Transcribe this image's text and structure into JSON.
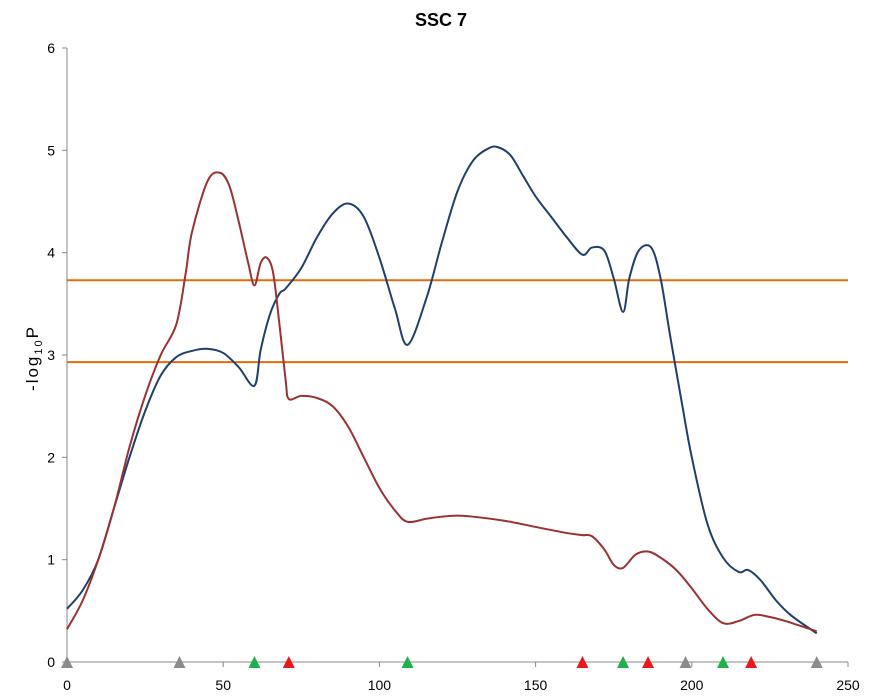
{
  "chart_data": {
    "type": "line",
    "title": "SSC 7",
    "ylabel": "-log10P",
    "ylabel_parts": {
      "prefix": "-log",
      "subscript": "10",
      "suffix": "P"
    },
    "xlabel": "",
    "xlim": [
      0,
      250
    ],
    "ylim": [
      0,
      6
    ],
    "xticks": [
      0,
      50,
      100,
      150,
      200,
      250
    ],
    "yticks": [
      0,
      1,
      2,
      3,
      4,
      5,
      6
    ],
    "grid": false,
    "legend": "none",
    "series": [
      {
        "color": "#1F3F6F",
        "x": [
          0,
          5,
          10,
          15,
          20,
          25,
          30,
          35,
          40,
          45,
          50,
          55,
          60,
          62,
          65,
          68,
          70,
          75,
          80,
          85,
          90,
          95,
          100,
          105,
          109,
          115,
          120,
          125,
          130,
          135,
          138,
          142,
          146,
          150,
          155,
          160,
          165,
          168,
          172,
          175,
          178,
          180,
          183,
          187,
          190,
          193,
          197,
          200,
          205,
          210,
          215,
          218,
          222,
          227,
          232,
          240
        ],
        "y": [
          0.52,
          0.7,
          1.0,
          1.5,
          2.0,
          2.45,
          2.8,
          2.98,
          3.04,
          3.06,
          3.02,
          2.88,
          2.7,
          3.05,
          3.4,
          3.6,
          3.65,
          3.85,
          4.15,
          4.38,
          4.48,
          4.35,
          3.95,
          3.45,
          3.1,
          3.55,
          4.1,
          4.6,
          4.9,
          5.02,
          5.03,
          4.95,
          4.75,
          4.55,
          4.35,
          4.15,
          3.98,
          4.05,
          4.02,
          3.75,
          3.42,
          3.75,
          4.02,
          4.05,
          3.75,
          3.2,
          2.5,
          2.0,
          1.35,
          1.02,
          0.88,
          0.9,
          0.8,
          0.6,
          0.45,
          0.28
        ]
      },
      {
        "color": "#9B3131",
        "x": [
          0,
          5,
          10,
          15,
          20,
          25,
          30,
          35,
          38,
          40,
          45,
          49,
          52,
          55,
          58,
          60,
          62,
          64,
          66,
          68,
          70,
          71,
          75,
          80,
          85,
          90,
          95,
          100,
          105,
          109,
          115,
          120,
          125,
          130,
          140,
          150,
          160,
          165,
          168,
          172,
          175,
          178,
          182,
          186,
          190,
          195,
          200,
          205,
          210,
          215,
          220,
          225,
          230,
          240
        ],
        "y": [
          0.32,
          0.6,
          1.0,
          1.5,
          2.1,
          2.6,
          3.0,
          3.3,
          3.8,
          4.2,
          4.7,
          4.78,
          4.65,
          4.3,
          3.9,
          3.68,
          3.9,
          3.95,
          3.8,
          3.3,
          2.75,
          2.57,
          2.6,
          2.58,
          2.5,
          2.3,
          2.0,
          1.7,
          1.48,
          1.37,
          1.4,
          1.42,
          1.43,
          1.42,
          1.38,
          1.32,
          1.26,
          1.24,
          1.23,
          1.1,
          0.95,
          0.92,
          1.05,
          1.08,
          1.02,
          0.9,
          0.72,
          0.52,
          0.38,
          0.4,
          0.46,
          0.44,
          0.4,
          0.3
        ]
      }
    ],
    "threshold_lines": [
      {
        "y": 3.73,
        "color": "#E36C0A"
      },
      {
        "y": 2.93,
        "color": "#E36C0A"
      }
    ],
    "markers": [
      {
        "x": 0,
        "color": "#8C8C8C"
      },
      {
        "x": 36,
        "color": "#8C8C8C"
      },
      {
        "x": 60,
        "color": "#1DB04B"
      },
      {
        "x": 71,
        "color": "#E8191D"
      },
      {
        "x": 109,
        "color": "#1DB04B"
      },
      {
        "x": 165,
        "color": "#E8191D"
      },
      {
        "x": 178,
        "color": "#1DB04B"
      },
      {
        "x": 186,
        "color": "#E8191D"
      },
      {
        "x": 198,
        "color": "#8C8C8C"
      },
      {
        "x": 210,
        "color": "#1DB04B"
      },
      {
        "x": 219,
        "color": "#E8191D"
      },
      {
        "x": 240,
        "color": "#8C8C8C"
      }
    ]
  }
}
